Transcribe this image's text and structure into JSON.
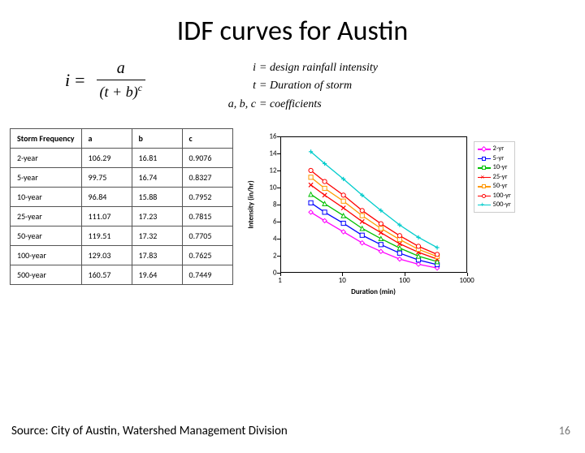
{
  "title": "IDF curves for Austin",
  "equation": {
    "lhs": "i",
    "numerator": "a",
    "denominator_base": "(t + b)",
    "denominator_exp": "c"
  },
  "definitions": [
    {
      "lhs": "i",
      "rhs": "= design  rainfall intensity"
    },
    {
      "lhs": "t",
      "rhs": "= Duration of storm"
    },
    {
      "lhs": "a, b, c",
      "rhs": "= coefficients"
    }
  ],
  "table": {
    "columns": [
      "Storm Frequency",
      "a",
      "b",
      "c"
    ],
    "rows": [
      [
        "2-year",
        "106.29",
        "16.81",
        "0.9076"
      ],
      [
        "5-year",
        "99.75",
        "16.74",
        "0.8327"
      ],
      [
        "10-year",
        "96.84",
        "15.88",
        "0.7952"
      ],
      [
        "25-year",
        "111.07",
        "17.23",
        "0.7815"
      ],
      [
        "50-year",
        "119.51",
        "17.32",
        "0.7705"
      ],
      [
        "100-year",
        "129.03",
        "17.83",
        "0.7625"
      ],
      [
        "500-year",
        "160.57",
        "19.64",
        "0.7449"
      ]
    ]
  },
  "chart": {
    "type": "line",
    "xscale": "log",
    "xlabel": "Duration (min)",
    "ylabel": "Intensity (in/hr)",
    "xticks": [
      1,
      10,
      100,
      1000
    ],
    "xtick_labels": [
      "1",
      "10",
      "100",
      "1000"
    ],
    "ylim": [
      0,
      16
    ],
    "ytick_step": 2,
    "yticks": [
      0,
      2,
      4,
      6,
      8,
      10,
      12,
      14,
      16
    ],
    "background_color": "#ffffff",
    "axis_color": "#000000",
    "tick_fontsize": 9,
    "label_fontsize": 9,
    "series": [
      {
        "label": "2-yr",
        "color": "#ff00ff",
        "marker": "diamond",
        "x": [
          3,
          5,
          10,
          20,
          40,
          80,
          160,
          320
        ],
        "y": [
          7.2,
          6.2,
          4.9,
          3.6,
          2.6,
          1.7,
          1.1,
          0.65
        ]
      },
      {
        "label": "5-yr",
        "color": "#0000ff",
        "marker": "square",
        "x": [
          3,
          5,
          10,
          20,
          40,
          80,
          160,
          320
        ],
        "y": [
          8.3,
          7.2,
          5.9,
          4.5,
          3.4,
          2.4,
          1.6,
          1.05
        ]
      },
      {
        "label": "10-yr",
        "color": "#00c000",
        "marker": "triangle",
        "x": [
          3,
          5,
          10,
          20,
          40,
          80,
          160,
          320
        ],
        "y": [
          9.3,
          8.2,
          6.8,
          5.3,
          4.1,
          3.0,
          2.05,
          1.4
        ]
      },
      {
        "label": "25-yr",
        "color": "#ff0000",
        "marker": "x",
        "x": [
          3,
          5,
          10,
          20,
          40,
          80,
          160,
          320
        ],
        "y": [
          10.4,
          9.2,
          7.7,
          6.1,
          4.8,
          3.5,
          2.5,
          1.7
        ]
      },
      {
        "label": "50-yr",
        "color": "#ff9900",
        "marker": "square",
        "x": [
          3,
          5,
          10,
          20,
          40,
          80,
          160,
          320
        ],
        "y": [
          11.3,
          10.0,
          8.5,
          6.8,
          5.3,
          4.0,
          2.85,
          2.0
        ]
      },
      {
        "label": "100-yr",
        "color": "#ff0000",
        "marker": "circle",
        "x": [
          3,
          5,
          10,
          20,
          40,
          80,
          160,
          320
        ],
        "y": [
          12.1,
          10.8,
          9.2,
          7.4,
          5.85,
          4.45,
          3.2,
          2.25
        ]
      },
      {
        "label": "500-yr",
        "color": "#00cccc",
        "marker": "plus",
        "x": [
          3,
          5,
          10,
          20,
          40,
          80,
          160,
          320
        ],
        "y": [
          14.3,
          12.9,
          11.1,
          9.2,
          7.4,
          5.7,
          4.25,
          3.05
        ]
      }
    ]
  },
  "source": "Source: City of Austin, Watershed Management Division",
  "page_number": "16"
}
